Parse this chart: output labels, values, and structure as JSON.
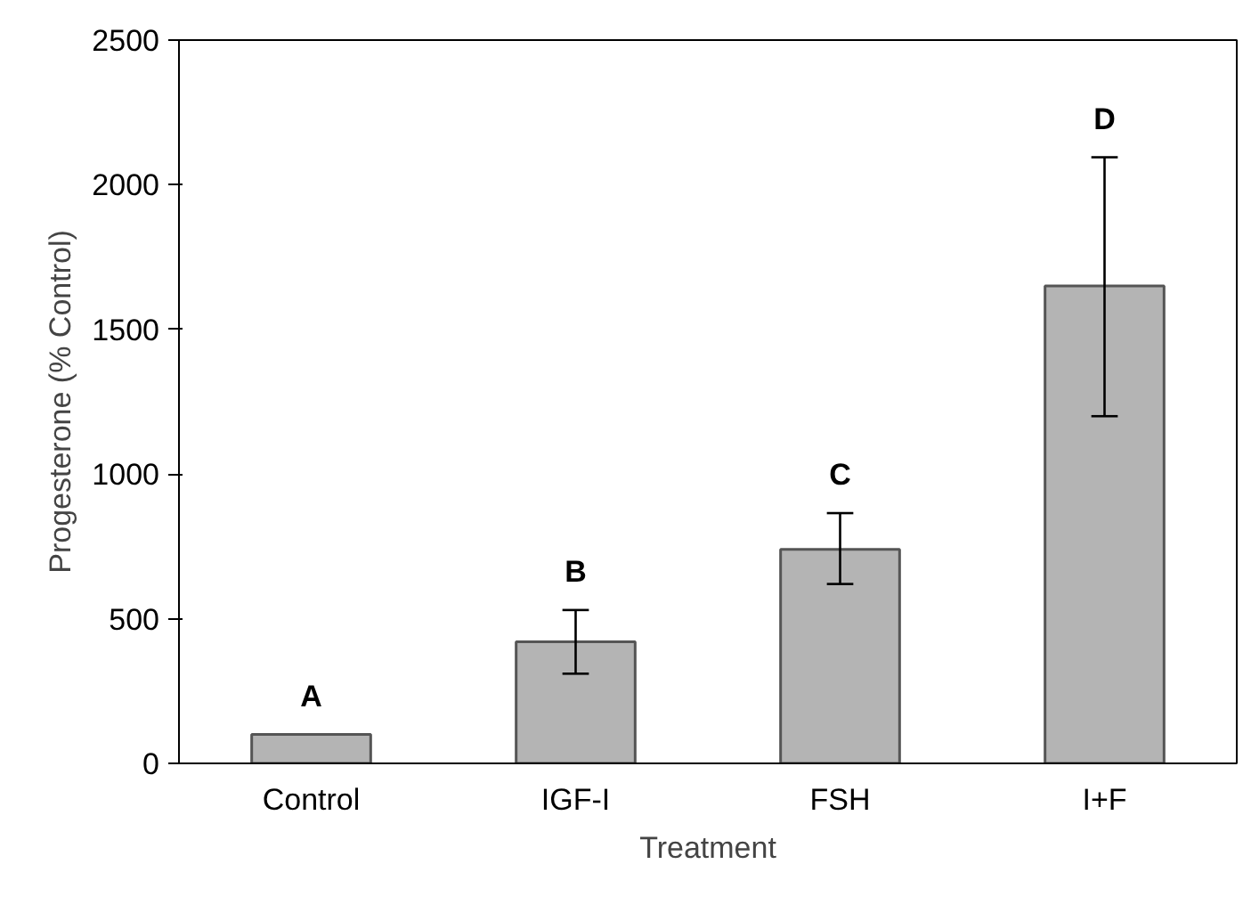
{
  "chart_data": {
    "type": "bar",
    "xlabel": "Treatment",
    "ylabel": "Progesterone (% Control)",
    "categories": [
      "Control",
      "IGF-I",
      "FSH",
      "I+F"
    ],
    "values": [
      100,
      420,
      740,
      1650
    ],
    "errors": [
      null,
      [
        310,
        530
      ],
      [
        620,
        865
      ],
      [
        1200,
        2095
      ]
    ],
    "color": "#b4b4b4",
    "ylim": [
      0,
      2500
    ],
    "yticks": [
      0,
      500,
      1000,
      1500,
      2000,
      2500
    ],
    "grid": false,
    "annotations": [
      "A",
      "B",
      "C",
      "D"
    ]
  }
}
